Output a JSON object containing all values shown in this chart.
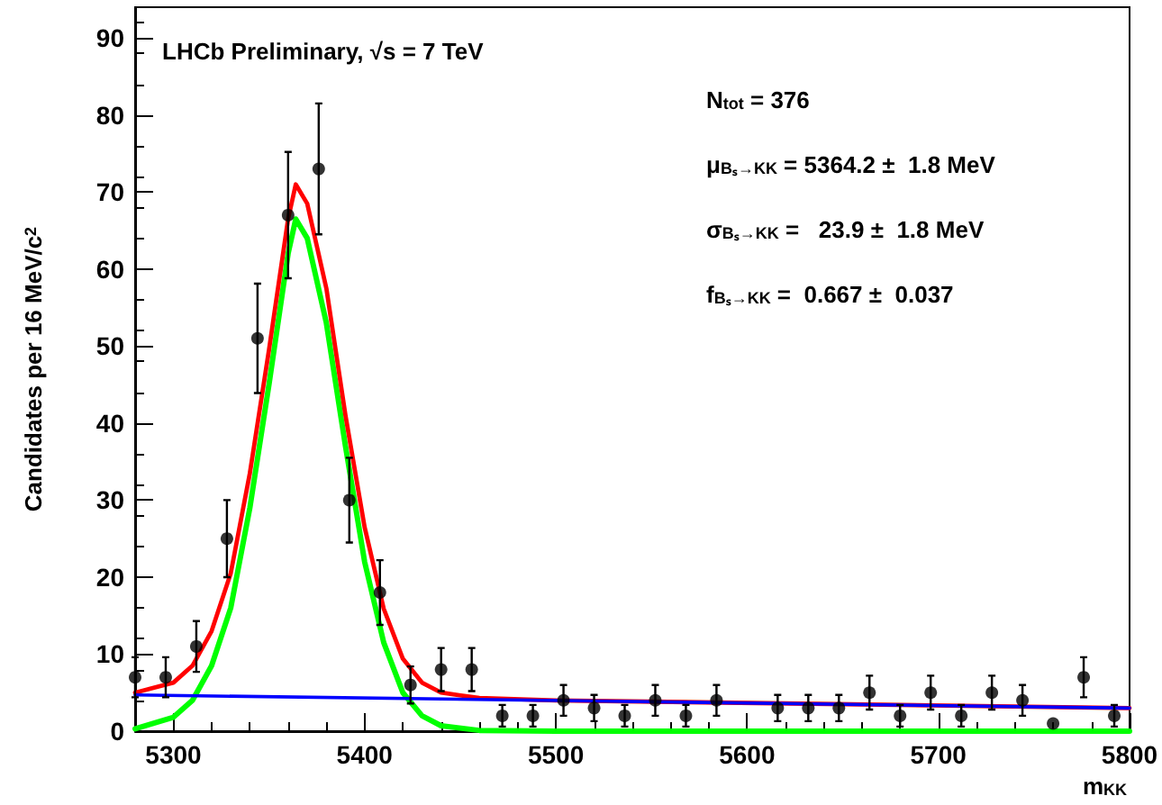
{
  "chart_data": {
    "type": "scatter",
    "xlabel": "m$_{KK}$",
    "ylabel": "Candidates per 16 MeV/c$^{2}$",
    "xlim": [
      5280,
      5800
    ],
    "xticks": [
      5300,
      5400,
      5500,
      5600,
      5700,
      5800
    ],
    "ylim": [
      0,
      94
    ],
    "yticks": [
      0,
      10,
      20,
      30,
      40,
      50,
      60,
      70,
      80,
      90
    ],
    "grid": false,
    "marker": "circle",
    "annotations": [
      "LHCb Preliminary, √s = 7 TeV",
      "N$_{tot}$ = 376",
      "μ$_{Bₛ→KK}$ = 5364.2 ±  1.8 MeV",
      "σ$_{Bₛ→KK}$ =   23.9 ±  1.8 MeV",
      "f$_{Bₛ→KK}$ =  0.667 ±  0.037"
    ],
    "series": [
      {
        "color": "#000000",
        "x": [
          5280,
          5296,
          5312,
          5328,
          5344,
          5360,
          5376,
          5392,
          5408,
          5424,
          5440,
          5456,
          5472,
          5488,
          5504,
          5520,
          5536,
          5552,
          5568,
          5584,
          5600,
          5616,
          5632,
          5648,
          5664,
          5680,
          5696,
          5712,
          5728,
          5744,
          5760,
          5776,
          5792
        ],
        "values": [
          7,
          7,
          11,
          25,
          51,
          67,
          73,
          30,
          18,
          6,
          8,
          8,
          2,
          2,
          4,
          3,
          2,
          4,
          2,
          4,
          null,
          3,
          3,
          3,
          5,
          2,
          5,
          2,
          5,
          4,
          1,
          7,
          2
        ],
        "errors": [
          2.6,
          2.6,
          3.3,
          5,
          7.1,
          8.2,
          8.5,
          5.5,
          4.2,
          2.4,
          2.8,
          2.8,
          1.4,
          1.4,
          2,
          1.7,
          1.4,
          2,
          1.4,
          2,
          null,
          1.7,
          1.7,
          1.7,
          2.2,
          1.4,
          2.2,
          1.4,
          2.2,
          2,
          null,
          2.6,
          1.4
        ]
      },
      {
        "type": "line",
        "marker": "none",
        "color": "#00ff00",
        "x": [
          5280,
          5300,
          5310,
          5320,
          5330,
          5340,
          5350,
          5360,
          5364,
          5370,
          5380,
          5390,
          5400,
          5410,
          5420,
          5430,
          5440,
          5460,
          5500,
          5800
        ],
        "values": [
          0.3,
          1.8,
          4,
          8.5,
          16,
          29,
          45,
          62,
          66.5,
          64,
          53,
          37,
          22,
          11.5,
          5,
          2,
          0.7,
          0.1,
          0,
          0
        ]
      },
      {
        "type": "line",
        "marker": "none",
        "color": "#ff0000",
        "x": [
          5280,
          5300,
          5310,
          5320,
          5330,
          5340,
          5350,
          5360,
          5364,
          5370,
          5380,
          5390,
          5400,
          5410,
          5420,
          5430,
          5440,
          5460,
          5500,
          5800
        ],
        "values": [
          5,
          6.3,
          8.5,
          13,
          20.5,
          33.5,
          49.5,
          66.5,
          71,
          68.5,
          57.5,
          41,
          26.5,
          15.9,
          9.4,
          6.3,
          5,
          4.3,
          4.0,
          3.0
        ]
      },
      {
        "type": "line",
        "marker": "none",
        "color": "#0000ff",
        "x": [
          5280,
          5800
        ],
        "values": [
          4.7,
          3.0
        ]
      }
    ]
  }
}
